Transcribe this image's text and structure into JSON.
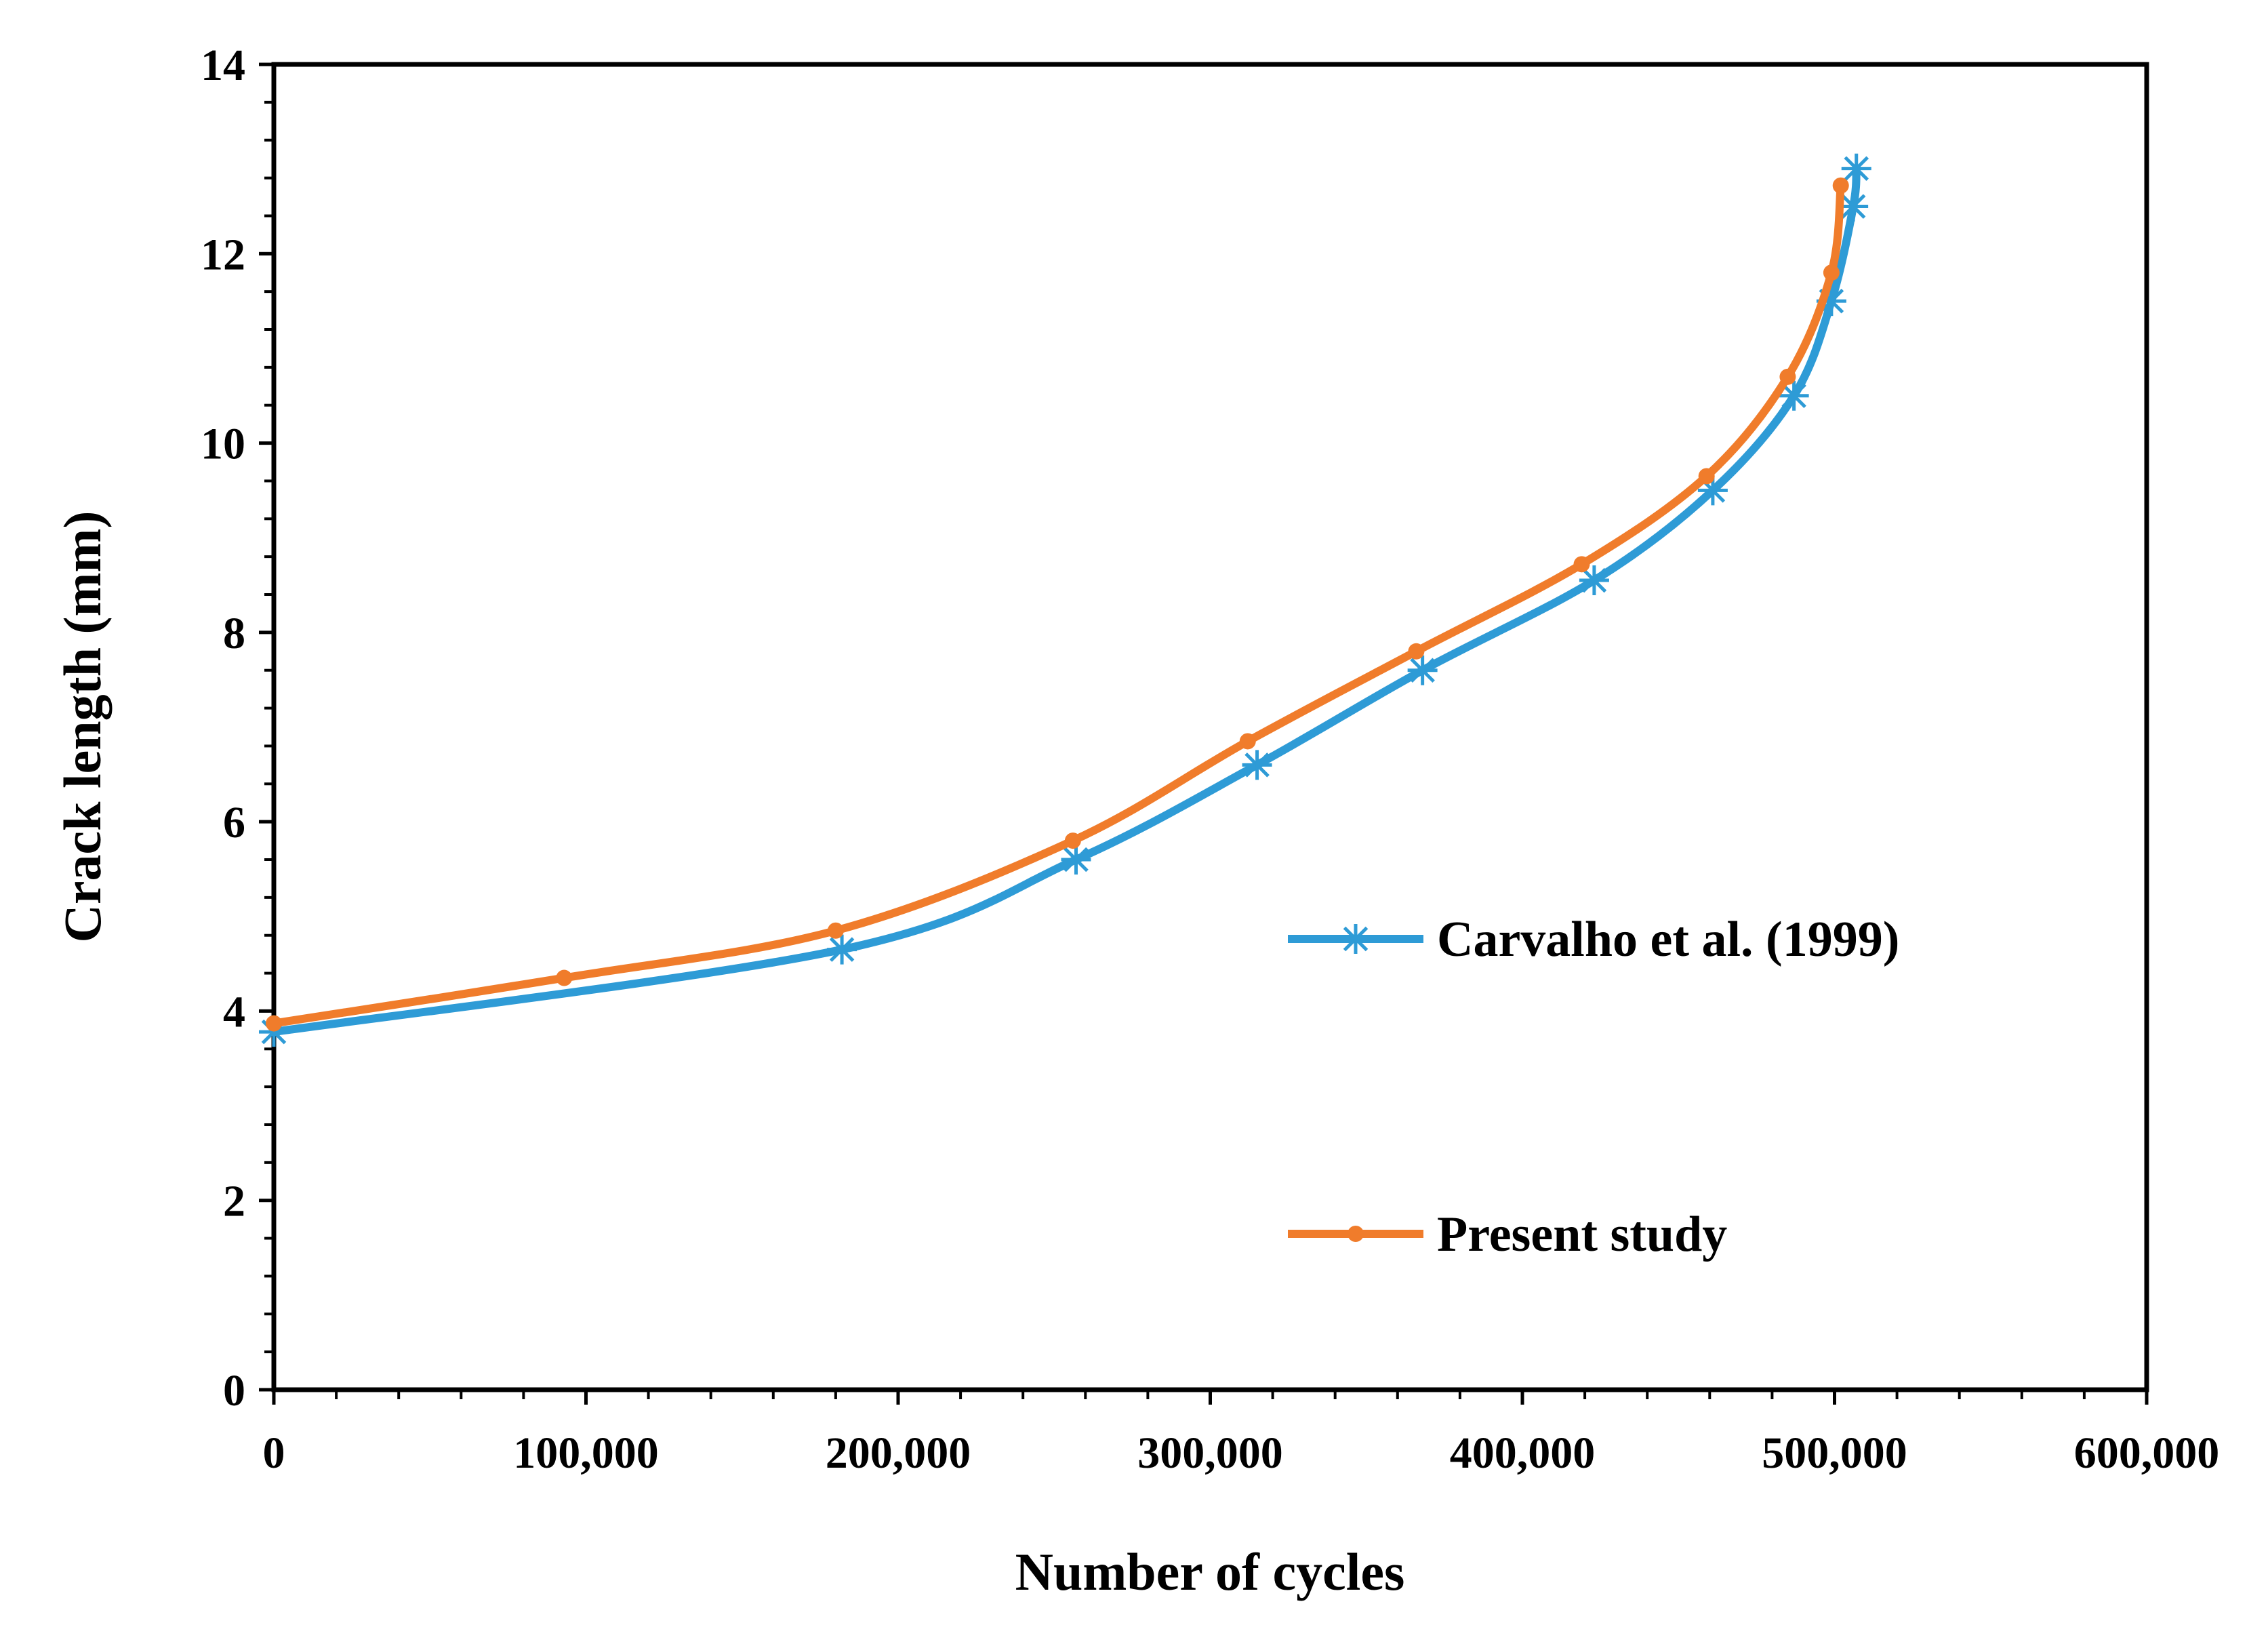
{
  "chart_data": {
    "type": "line",
    "title": "",
    "xlabel": "Number of cycles",
    "ylabel": "Crack length (mm)",
    "xlim": [
      0,
      600000
    ],
    "ylim": [
      0,
      14
    ],
    "x_ticks": [
      {
        "value": 0,
        "label": "0"
      },
      {
        "value": 100000,
        "label": "100,000"
      },
      {
        "value": 200000,
        "label": "200,000"
      },
      {
        "value": 300000,
        "label": "300,000"
      },
      {
        "value": 400000,
        "label": "400,000"
      },
      {
        "value": 500000,
        "label": "500,000"
      },
      {
        "value": 600000,
        "label": "600,000"
      }
    ],
    "y_ticks": [
      {
        "value": 0,
        "label": "0"
      },
      {
        "value": 2,
        "label": "2"
      },
      {
        "value": 4,
        "label": "4"
      },
      {
        "value": 6,
        "label": "6"
      },
      {
        "value": 8,
        "label": "8"
      },
      {
        "value": 10,
        "label": "10"
      },
      {
        "value": 12,
        "label": "12"
      },
      {
        "value": 14,
        "label": "14"
      }
    ],
    "grid": false,
    "legend_position": "right",
    "series": [
      {
        "name": "Carvalho et al. (1999)",
        "color": "#2E9BD6",
        "marker": "star",
        "x": [
          0,
          182000,
          257000,
          315000,
          368000,
          423000,
          461000,
          487000,
          499000,
          506000,
          507000
        ],
        "y": [
          3.78,
          4.65,
          5.6,
          6.6,
          7.6,
          8.55,
          9.5,
          10.5,
          11.5,
          12.5,
          12.9
        ]
      },
      {
        "name": "Present study",
        "color": "#F07C2B",
        "marker": "circle",
        "x": [
          0,
          93000,
          180000,
          256000,
          312000,
          366000,
          419000,
          459000,
          485000,
          499000,
          502000
        ],
        "y": [
          3.87,
          4.35,
          4.85,
          5.8,
          6.85,
          7.8,
          8.72,
          9.65,
          10.7,
          11.8,
          12.72
        ]
      }
    ]
  }
}
